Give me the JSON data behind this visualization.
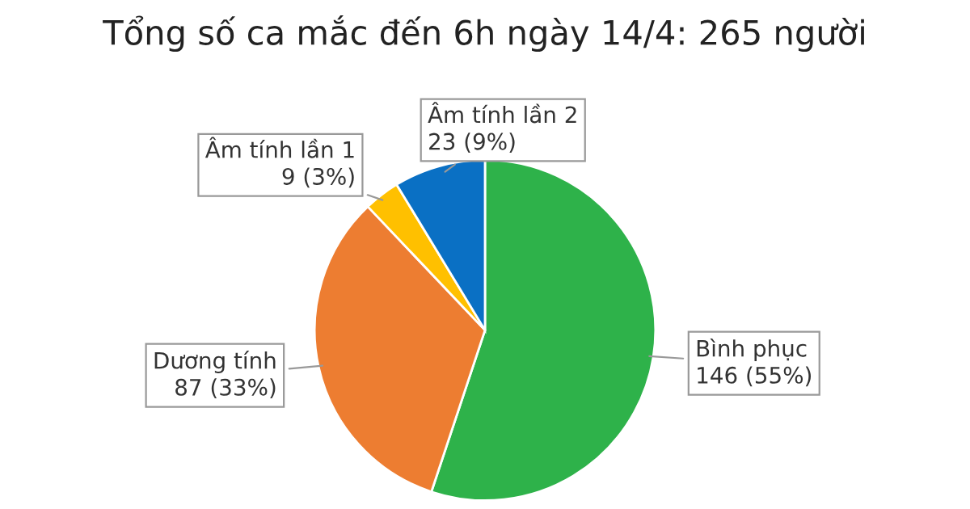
{
  "chart_data": {
    "type": "pie",
    "title": "Tổng số ca mắc đến 6h ngày 14/4: 265 người",
    "categories": [
      "Bình phục",
      "Dương tính",
      "Âm tính lần 1",
      "Âm tính lần 2"
    ],
    "values": [
      146,
      87,
      9,
      23
    ],
    "value_labels": [
      "146 (55%)",
      "87 (33%)",
      "9 (3%)",
      "23 (9%)"
    ],
    "colors": [
      "#2eb24a",
      "#ed7d31",
      "#ffc000",
      "#0a70c4"
    ]
  }
}
